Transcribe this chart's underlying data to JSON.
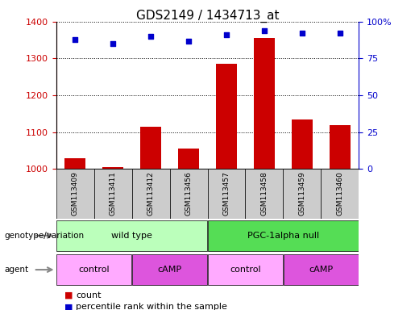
{
  "title": "GDS2149 / 1434713_at",
  "samples": [
    "GSM113409",
    "GSM113411",
    "GSM113412",
    "GSM113456",
    "GSM113457",
    "GSM113458",
    "GSM113459",
    "GSM113460"
  ],
  "count_values": [
    1030,
    1005,
    1115,
    1055,
    1285,
    1355,
    1135,
    1120
  ],
  "percentile_values": [
    88,
    85,
    90,
    87,
    91,
    94,
    92,
    92
  ],
  "ylim_left": [
    1000,
    1400
  ],
  "ylim_right": [
    0,
    100
  ],
  "yticks_left": [
    1000,
    1100,
    1200,
    1300,
    1400
  ],
  "yticks_right": [
    0,
    25,
    50,
    75,
    100
  ],
  "bar_color": "#cc0000",
  "dot_color": "#0000cc",
  "bg_color": "#ffffff",
  "genotype_groups": [
    {
      "label": "wild type",
      "start": 0,
      "end": 4,
      "color": "#bbffbb"
    },
    {
      "label": "PGC-1alpha null",
      "start": 4,
      "end": 8,
      "color": "#55dd55"
    }
  ],
  "agent_groups": [
    {
      "label": "control",
      "start": 0,
      "end": 2,
      "color": "#ffaaff"
    },
    {
      "label": "cAMP",
      "start": 2,
      "end": 4,
      "color": "#dd55dd"
    },
    {
      "label": "control",
      "start": 4,
      "end": 6,
      "color": "#ffaaff"
    },
    {
      "label": "cAMP",
      "start": 6,
      "end": 8,
      "color": "#dd55dd"
    }
  ],
  "left_color": "#cc0000",
  "right_color": "#0000cc",
  "title_fontsize": 11,
  "tick_fontsize": 8,
  "sample_fontsize": 6.5,
  "group_fontsize": 8,
  "legend_fontsize": 8
}
